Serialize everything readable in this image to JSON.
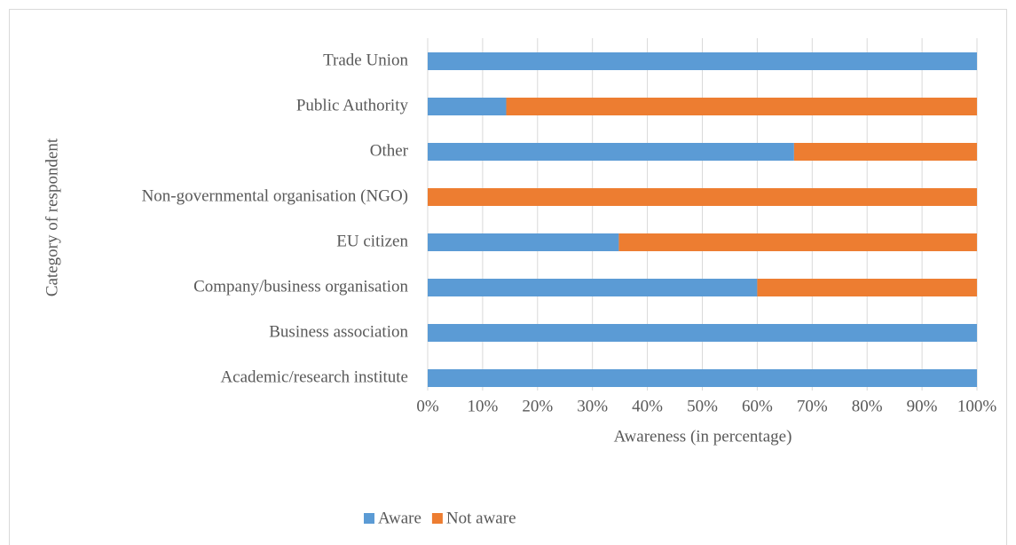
{
  "chart_data": {
    "type": "stacked_bar_horizontal",
    "x_axis_label": "Awareness (in percentage)",
    "y_axis_label": "Category of respondent",
    "categories": [
      "Trade Union",
      "Public Authority",
      "Other",
      "Non-governmental organisation (NGO)",
      "EU citizen",
      "Company/business organisation",
      "Business association",
      "Academic/research institute"
    ],
    "series": [
      {
        "name": "Aware",
        "color": "#5b9bd5",
        "values": [
          100,
          14.3,
          66.7,
          0,
          34.8,
          60,
          100,
          100
        ]
      },
      {
        "name": "Not aware",
        "color": "#ed7d31",
        "values": [
          0,
          85.7,
          33.3,
          100,
          65.2,
          40,
          0,
          0
        ]
      }
    ],
    "xlim": [
      0,
      100
    ],
    "xticks": [
      {
        "value": 0,
        "label": "0%"
      },
      {
        "value": 10,
        "label": "10%"
      },
      {
        "value": 20,
        "label": "20%"
      },
      {
        "value": 30,
        "label": "30%"
      },
      {
        "value": 40,
        "label": "40%"
      },
      {
        "value": 50,
        "label": "50%"
      },
      {
        "value": 60,
        "label": "60%"
      },
      {
        "value": 70,
        "label": "70%"
      },
      {
        "value": 80,
        "label": "80%"
      },
      {
        "value": 90,
        "label": "90%"
      },
      {
        "value": 100,
        "label": "100%"
      }
    ],
    "grid": true,
    "legend": "bottom"
  }
}
